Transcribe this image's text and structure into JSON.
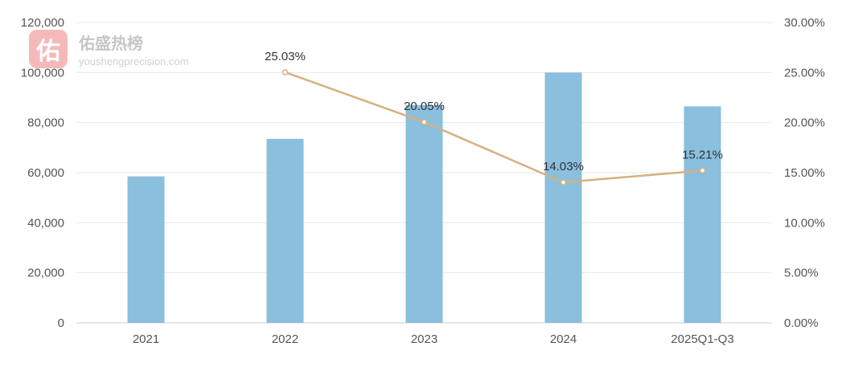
{
  "watermark": {
    "logo_char": "佑",
    "name": "佑盛热榜",
    "url": "youshengprecision.com"
  },
  "colors": {
    "bar": "#8abfdd",
    "line": "#d6b080",
    "grid": "#e8e8e8",
    "axis": "#cccccc"
  },
  "chart_data": {
    "type": "bar",
    "title": "",
    "xlabel": "",
    "ylabel": "",
    "categories": [
      "2021",
      "2022",
      "2023",
      "2024",
      "2025Q1-Q3"
    ],
    "ylim": [
      0,
      120000
    ],
    "y_ticks": [
      "0",
      "20,000",
      "40,000",
      "60,000",
      "80,000",
      "100,000",
      "120,000"
    ],
    "y2lim": [
      0,
      30
    ],
    "y2_ticks": [
      "0.00%",
      "5.00%",
      "10.00%",
      "15.00%",
      "20.00%",
      "25.00%",
      "30.00%"
    ],
    "grid": true,
    "series": [
      {
        "type": "bar",
        "axis": "left",
        "values": [
          58500,
          73500,
          87000,
          100000,
          86500
        ]
      },
      {
        "type": "line",
        "axis": "right",
        "values": [
          null,
          25.03,
          20.05,
          14.03,
          15.21
        ],
        "labels": [
          null,
          "25.03%",
          "20.05%",
          "14.03%",
          "15.21%"
        ]
      }
    ]
  }
}
